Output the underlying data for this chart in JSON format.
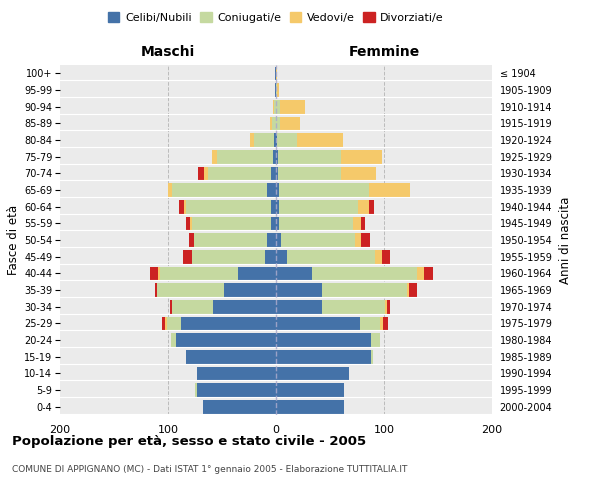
{
  "age_groups": [
    "0-4",
    "5-9",
    "10-14",
    "15-19",
    "20-24",
    "25-29",
    "30-34",
    "35-39",
    "40-44",
    "45-49",
    "50-54",
    "55-59",
    "60-64",
    "65-69",
    "70-74",
    "75-79",
    "80-84",
    "85-89",
    "90-94",
    "95-99",
    "100+"
  ],
  "birth_years": [
    "2000-2004",
    "1995-1999",
    "1990-1994",
    "1985-1989",
    "1980-1984",
    "1975-1979",
    "1970-1974",
    "1965-1969",
    "1960-1964",
    "1955-1959",
    "1950-1954",
    "1945-1949",
    "1940-1944",
    "1935-1939",
    "1930-1934",
    "1925-1929",
    "1920-1924",
    "1915-1919",
    "1910-1914",
    "1905-1909",
    "≤ 1904"
  ],
  "maschi": {
    "celibi": [
      68,
      73,
      73,
      83,
      93,
      88,
      58,
      48,
      35,
      10,
      8,
      5,
      5,
      8,
      5,
      3,
      2,
      0,
      0,
      1,
      1
    ],
    "coniugati": [
      0,
      2,
      0,
      0,
      4,
      13,
      38,
      62,
      72,
      68,
      68,
      73,
      78,
      88,
      58,
      52,
      18,
      4,
      2,
      0,
      0
    ],
    "vedovi": [
      0,
      0,
      0,
      0,
      0,
      2,
      0,
      0,
      2,
      0,
      0,
      2,
      2,
      4,
      4,
      4,
      4,
      2,
      1,
      0,
      0
    ],
    "divorziati": [
      0,
      0,
      0,
      0,
      0,
      3,
      2,
      2,
      8,
      8,
      5,
      3,
      5,
      0,
      5,
      0,
      0,
      0,
      0,
      0,
      0
    ]
  },
  "femmine": {
    "nubili": [
      63,
      63,
      68,
      88,
      88,
      78,
      43,
      43,
      33,
      10,
      5,
      3,
      3,
      3,
      2,
      2,
      1,
      0,
      0,
      0,
      0
    ],
    "coniugate": [
      0,
      0,
      0,
      2,
      8,
      18,
      58,
      78,
      98,
      82,
      68,
      68,
      73,
      83,
      58,
      58,
      18,
      4,
      4,
      1,
      0
    ],
    "vedove": [
      0,
      0,
      0,
      0,
      0,
      3,
      2,
      2,
      6,
      6,
      6,
      8,
      10,
      38,
      33,
      38,
      43,
      18,
      23,
      2,
      1
    ],
    "divorziate": [
      0,
      0,
      0,
      0,
      0,
      5,
      3,
      8,
      8,
      8,
      8,
      3,
      5,
      0,
      0,
      0,
      0,
      0,
      0,
      0,
      0
    ]
  },
  "colors": {
    "celibi_nubili": "#4472a8",
    "coniugati": "#c5d9a0",
    "vedovi": "#f5c96a",
    "divorziati": "#cc2222"
  },
  "xlim": 200,
  "title": "Popolazione per età, sesso e stato civile - 2005",
  "subtitle": "COMUNE DI APPIGNANO (MC) - Dati ISTAT 1° gennaio 2005 - Elaborazione TUTTITALIA.IT",
  "ylabel_left": "Fasce di età",
  "ylabel_right": "Anni di nascita",
  "xlabel_maschi": "Maschi",
  "xlabel_femmine": "Femmine",
  "legend_labels": [
    "Celibi/Nubili",
    "Coniugati/e",
    "Vedovi/e",
    "Divorziati/e"
  ],
  "bg_color": "#ebebeb",
  "grid_color": "#cccccc"
}
